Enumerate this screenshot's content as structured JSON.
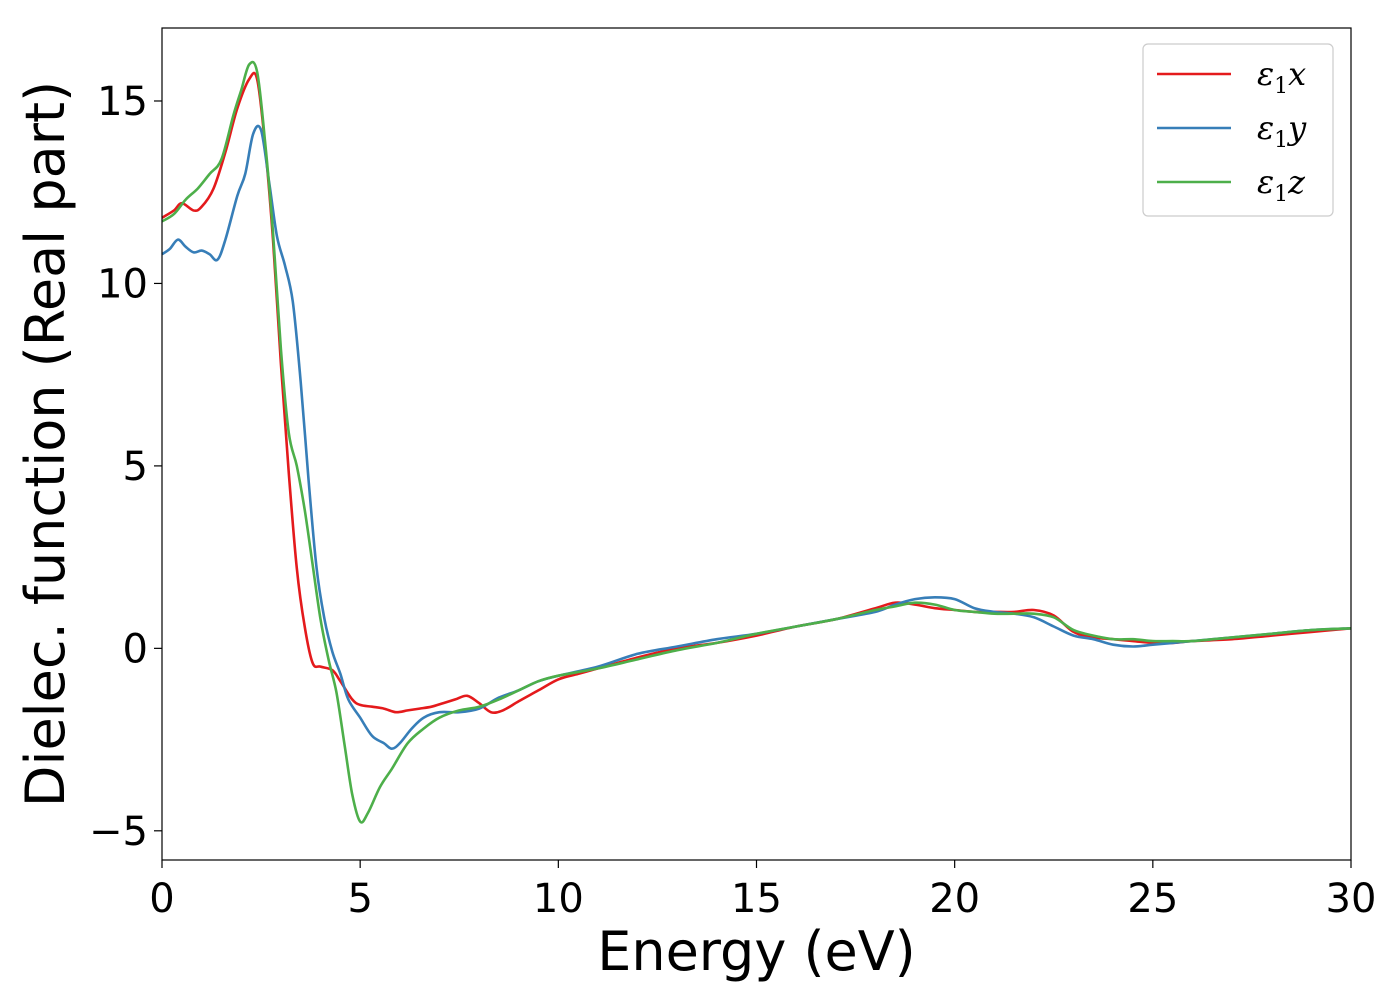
{
  "chart_data": {
    "type": "line",
    "title": "",
    "xlabel": "Energy (eV)",
    "ylabel": "Dielec. function (Real part)",
    "xlim": [
      0,
      30
    ],
    "ylim": [
      -5.8,
      17.0
    ],
    "xticks": [
      0,
      5,
      10,
      15,
      20,
      25,
      30
    ],
    "xtick_labels": [
      "0",
      "5",
      "10",
      "15",
      "20",
      "25",
      "30"
    ],
    "yticks": [
      -5,
      0,
      5,
      10,
      15
    ],
    "ytick_labels": [
      "−5",
      "0",
      "5",
      "10",
      "15"
    ],
    "grid": false,
    "legend_position": "top-right",
    "series": [
      {
        "name": "ε₁x",
        "label_main": "ε",
        "label_sub": "1",
        "label_tail": "x",
        "color": "#e41a1c",
        "x": [
          0.0,
          0.3,
          0.5,
          0.8,
          1.0,
          1.3,
          1.6,
          1.9,
          2.2,
          2.4,
          2.6,
          2.8,
          3.0,
          3.2,
          3.4,
          3.6,
          3.8,
          4.0,
          4.3,
          4.5,
          4.8,
          5.0,
          5.3,
          5.6,
          5.9,
          6.2,
          6.5,
          6.8,
          7.1,
          7.4,
          7.7,
          8.0,
          8.3,
          8.6,
          9.0,
          9.5,
          10.0,
          10.5,
          11.0,
          12.0,
          13.0,
          14.0,
          15.0,
          16.0,
          17.0,
          18.0,
          18.5,
          19.0,
          19.5,
          20.0,
          20.5,
          21.0,
          21.5,
          22.0,
          22.5,
          23.0,
          23.5,
          24.0,
          24.5,
          25.0,
          25.5,
          26.0,
          27.0,
          28.0,
          29.0,
          30.0
        ],
        "values": [
          11.8,
          12.0,
          12.2,
          12.0,
          12.1,
          12.6,
          13.6,
          14.8,
          15.6,
          15.6,
          13.8,
          11.2,
          7.8,
          4.8,
          2.2,
          0.6,
          -0.4,
          -0.5,
          -0.6,
          -0.9,
          -1.4,
          -1.55,
          -1.6,
          -1.65,
          -1.75,
          -1.7,
          -1.65,
          -1.6,
          -1.5,
          -1.4,
          -1.3,
          -1.5,
          -1.75,
          -1.7,
          -1.45,
          -1.15,
          -0.85,
          -0.7,
          -0.55,
          -0.25,
          0.0,
          0.15,
          0.35,
          0.6,
          0.8,
          1.1,
          1.25,
          1.2,
          1.1,
          1.05,
          1.0,
          1.0,
          1.0,
          1.05,
          0.9,
          0.45,
          0.3,
          0.25,
          0.2,
          0.15,
          0.15,
          0.2,
          0.25,
          0.35,
          0.45,
          0.55
        ]
      },
      {
        "name": "ε₁y",
        "label_main": "ε",
        "label_sub": "1",
        "label_tail": "y",
        "color": "#377eb8",
        "x": [
          0.0,
          0.2,
          0.4,
          0.6,
          0.8,
          1.0,
          1.2,
          1.4,
          1.6,
          1.9,
          2.1,
          2.3,
          2.5,
          2.7,
          2.9,
          3.1,
          3.3,
          3.5,
          3.7,
          3.9,
          4.1,
          4.3,
          4.5,
          4.7,
          5.0,
          5.3,
          5.6,
          5.8,
          6.0,
          6.3,
          6.6,
          7.0,
          7.5,
          8.0,
          8.5,
          9.0,
          9.5,
          10.0,
          11.0,
          12.0,
          13.0,
          14.0,
          15.0,
          16.0,
          17.0,
          18.0,
          18.5,
          19.0,
          19.5,
          20.0,
          20.5,
          21.0,
          21.5,
          22.0,
          22.5,
          23.0,
          23.5,
          24.0,
          24.5,
          25.0,
          25.5,
          26.0,
          27.0,
          28.0,
          29.0,
          30.0
        ],
        "values": [
          10.8,
          10.95,
          11.2,
          11.0,
          10.85,
          10.9,
          10.8,
          10.65,
          11.2,
          12.4,
          13.0,
          14.1,
          14.2,
          12.8,
          11.3,
          10.5,
          9.5,
          7.3,
          4.6,
          2.2,
          0.8,
          -0.1,
          -0.7,
          -1.4,
          -1.9,
          -2.4,
          -2.6,
          -2.75,
          -2.6,
          -2.2,
          -1.9,
          -1.75,
          -1.75,
          -1.65,
          -1.35,
          -1.15,
          -0.9,
          -0.75,
          -0.5,
          -0.15,
          0.05,
          0.25,
          0.4,
          0.6,
          0.8,
          1.0,
          1.2,
          1.35,
          1.4,
          1.35,
          1.1,
          1.0,
          0.95,
          0.85,
          0.6,
          0.35,
          0.25,
          0.1,
          0.05,
          0.1,
          0.15,
          0.2,
          0.3,
          0.4,
          0.5,
          0.55
        ]
      },
      {
        "name": "ε₁z",
        "label_main": "ε",
        "label_sub": "1",
        "label_tail": "z",
        "color": "#4daf4a",
        "x": [
          0.0,
          0.3,
          0.6,
          0.9,
          1.2,
          1.5,
          1.8,
          2.0,
          2.2,
          2.4,
          2.6,
          2.8,
          3.0,
          3.2,
          3.4,
          3.6,
          3.8,
          4.0,
          4.2,
          4.4,
          4.6,
          4.8,
          5.0,
          5.2,
          5.5,
          5.8,
          6.2,
          6.6,
          7.0,
          7.5,
          8.0,
          8.5,
          9.0,
          9.5,
          10.0,
          11.0,
          12.0,
          13.0,
          14.0,
          15.0,
          16.0,
          17.0,
          18.0,
          18.5,
          19.0,
          19.5,
          20.0,
          20.5,
          21.0,
          21.5,
          22.0,
          22.5,
          23.0,
          23.5,
          24.0,
          24.5,
          25.0,
          25.5,
          26.0,
          27.0,
          28.0,
          29.0,
          30.0
        ],
        "values": [
          11.7,
          11.9,
          12.3,
          12.6,
          13.0,
          13.4,
          14.6,
          15.3,
          16.0,
          15.8,
          13.9,
          11.4,
          8.2,
          5.9,
          5.0,
          3.8,
          2.3,
          0.8,
          -0.3,
          -1.2,
          -2.6,
          -4.0,
          -4.75,
          -4.5,
          -3.8,
          -3.3,
          -2.6,
          -2.2,
          -1.9,
          -1.7,
          -1.6,
          -1.4,
          -1.15,
          -0.9,
          -0.75,
          -0.55,
          -0.3,
          -0.05,
          0.15,
          0.4,
          0.6,
          0.8,
          1.05,
          1.15,
          1.25,
          1.2,
          1.05,
          1.0,
          0.95,
          0.95,
          0.95,
          0.85,
          0.5,
          0.35,
          0.25,
          0.25,
          0.2,
          0.2,
          0.2,
          0.3,
          0.4,
          0.5,
          0.55
        ]
      }
    ]
  }
}
